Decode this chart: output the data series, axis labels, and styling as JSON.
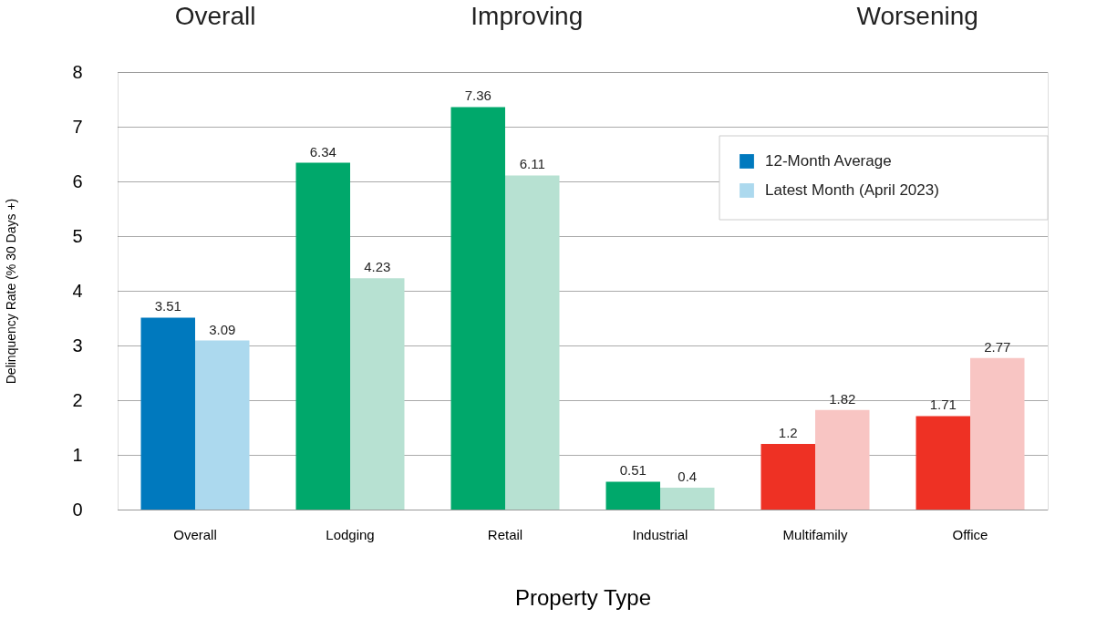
{
  "chart_data": {
    "type": "bar",
    "xlabel": "Property Type",
    "ylabel": "Delinquency Rate (% 30 Days +)",
    "categories": [
      "Overall",
      "Lodging",
      "Retail",
      "Industrial",
      "Multifamily",
      "Office"
    ],
    "series": [
      {
        "name": "12-Month Average",
        "color": "#0079be",
        "colors": [
          "#0079be",
          "#00a86b",
          "#00a86b",
          "#00a86b",
          "#ee3124",
          "#ee3124"
        ],
        "values": [
          3.51,
          6.34,
          7.36,
          0.51,
          1.2,
          1.71
        ]
      },
      {
        "name": "Latest Month (April 2023)",
        "color": "#acd9ee",
        "colors": [
          "#acd9ee",
          "#b7e1d2",
          "#b7e1d2",
          "#b7e1d2",
          "#f8c5c3",
          "#f8c5c3"
        ],
        "values": [
          3.09,
          4.23,
          6.11,
          0.4,
          1.82,
          2.77
        ]
      }
    ],
    "annotations": [
      "Overall",
      "Improving",
      "Worsening"
    ],
    "ylim": [
      0,
      8
    ],
    "yticks": [
      0,
      1,
      2,
      3,
      4,
      5,
      6,
      7,
      8
    ],
    "grid": "y",
    "legend": "top right",
    "data_labels": true
  }
}
